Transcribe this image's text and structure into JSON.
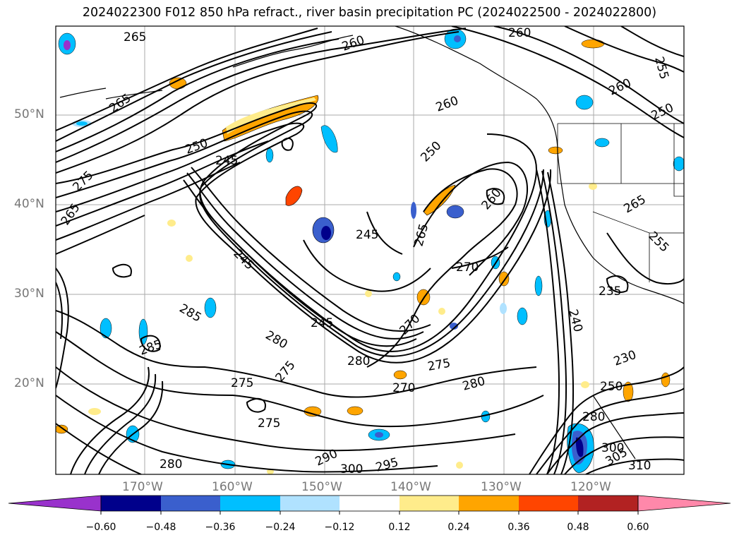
{
  "title": "2024022300 F012 850 hPa refract., river basin precipitation PC (2024022500 - 2024022800)",
  "map": {
    "region": "North Pacific and western North America",
    "lat_labels": [
      "50°N",
      "40°N",
      "30°N",
      "20°N"
    ],
    "lon_labels": [
      "170°W",
      "160°W",
      "150°W",
      "140°W",
      "130°W",
      "120°W"
    ],
    "contour_labels": [
      "265",
      "260",
      "260",
      "255",
      "260",
      "250",
      "265",
      "260",
      "250",
      "245",
      "250",
      "260",
      "265",
      "255",
      "275",
      "265",
      "245",
      "265",
      "270",
      "245",
      "235",
      "280",
      "285",
      "285",
      "270",
      "245",
      "240",
      "280",
      "275",
      "275",
      "280",
      "230",
      "270",
      "250",
      "275",
      "280",
      "290",
      "300",
      "300",
      "295",
      "310",
      "305",
      "280",
      "275"
    ]
  },
  "colorbar": {
    "ticks": [
      "−0.60",
      "−0.48",
      "−0.36",
      "−0.24",
      "−0.12",
      "0.12",
      "0.24",
      "0.36",
      "0.48",
      "0.60"
    ],
    "colors": [
      "#9932cc",
      "#00008b",
      "#3a5fcd",
      "#00bfff",
      "#b0e2ff",
      "#ffffff",
      "#ffec8b",
      "#ffa500",
      "#ff4500",
      "#b22222",
      "#ff88aa"
    ]
  }
}
